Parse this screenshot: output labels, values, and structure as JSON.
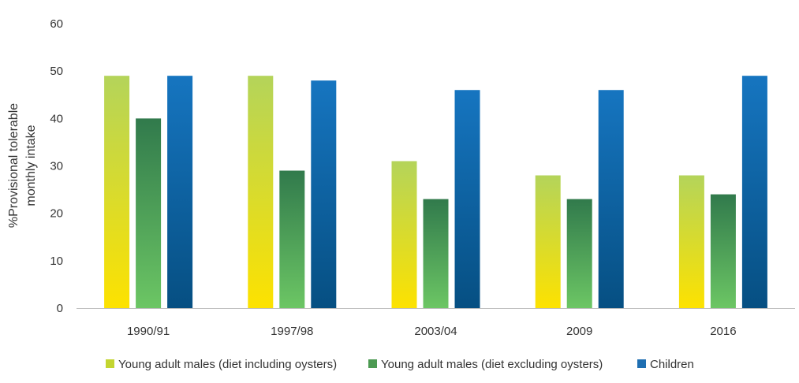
{
  "chart_data": {
    "type": "bar",
    "title": "",
    "xlabel": "",
    "ylabel_lines": [
      "%Provisional tolerable",
      "monthly intake"
    ],
    "ylim": [
      0,
      60
    ],
    "yticks": [
      0,
      10,
      20,
      30,
      40,
      50,
      60
    ],
    "categories": [
      "1990/91",
      "1997/98",
      "2003/04",
      "2009",
      "2016"
    ],
    "series": [
      {
        "name": "Young adult males (diet including oysters)",
        "values": [
          49,
          49,
          31,
          28,
          28
        ],
        "legend_color": "#c3d530",
        "gradient": [
          "#b4d45a",
          "#fde200"
        ]
      },
      {
        "name": "Young adult males (diet excluding oysters)",
        "values": [
          40,
          29,
          23,
          23,
          24
        ],
        "legend_color": "#4c9a52",
        "gradient": [
          "#317a4c",
          "#6cc664"
        ]
      },
      {
        "name": "Children",
        "values": [
          49,
          48,
          46,
          46,
          49
        ],
        "legend_color": "#1f6fb2",
        "gradient": [
          "#1675c0",
          "#064f82"
        ]
      }
    ],
    "grid": false,
    "legend_position": "bottom"
  }
}
